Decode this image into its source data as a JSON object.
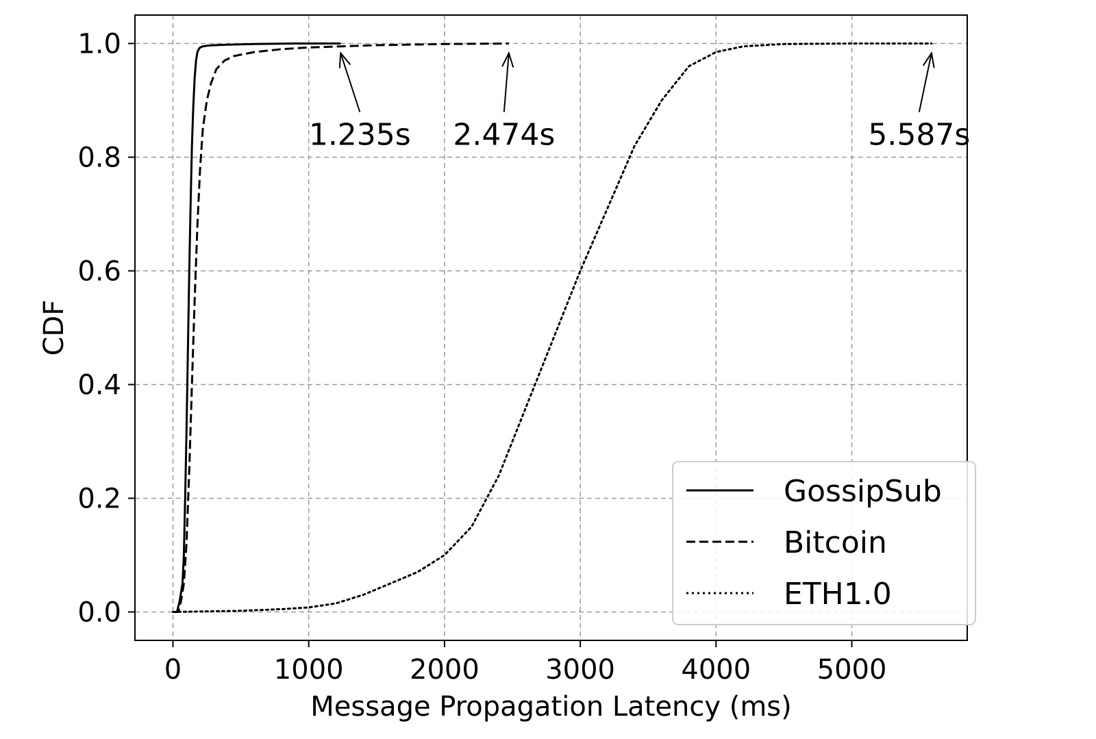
{
  "chart_data": {
    "type": "line",
    "title": "",
    "xlabel": "Message Propagation Latency (ms)",
    "ylabel": "CDF",
    "xlim": [
      -280,
      5850
    ],
    "ylim": [
      -0.05,
      1.05
    ],
    "x_ticks": [
      0,
      1000,
      2000,
      3000,
      4000,
      5000
    ],
    "x_tick_labels": [
      "0",
      "1000",
      "2000",
      "3000",
      "4000",
      "5000"
    ],
    "y_ticks": [
      0.0,
      0.2,
      0.4,
      0.6,
      0.8,
      1.0
    ],
    "y_tick_labels": [
      "0.0",
      "0.2",
      "0.4",
      "0.6",
      "0.8",
      "1.0"
    ],
    "grid": true,
    "legend_position": "bottom-right",
    "series": [
      {
        "name": "GossipSub",
        "style": "solid",
        "x": [
          0,
          30,
          50,
          70,
          80,
          90,
          100,
          110,
          120,
          130,
          140,
          150,
          160,
          170,
          180,
          190,
          200,
          220,
          250,
          300,
          400,
          600,
          900,
          1235
        ],
        "y": [
          0.0,
          0.0,
          0.02,
          0.05,
          0.1,
          0.2,
          0.32,
          0.46,
          0.6,
          0.72,
          0.82,
          0.89,
          0.94,
          0.97,
          0.985,
          0.99,
          0.993,
          0.995,
          0.996,
          0.997,
          0.998,
          0.999,
          1.0,
          1.0
        ]
      },
      {
        "name": "Bitcoin",
        "style": "dashed",
        "x": [
          0,
          40,
          60,
          80,
          100,
          120,
          140,
          160,
          180,
          200,
          220,
          250,
          280,
          320,
          380,
          450,
          600,
          800,
          1000,
          1500,
          2000,
          2474
        ],
        "y": [
          0.0,
          0.0,
          0.02,
          0.05,
          0.12,
          0.25,
          0.4,
          0.55,
          0.68,
          0.78,
          0.85,
          0.9,
          0.93,
          0.955,
          0.97,
          0.978,
          0.985,
          0.99,
          0.993,
          0.997,
          0.999,
          1.0
        ]
      },
      {
        "name": "ETH1.0",
        "style": "dotted",
        "x": [
          0,
          500,
          800,
          1000,
          1200,
          1400,
          1600,
          1800,
          2000,
          2200,
          2400,
          2600,
          2800,
          3000,
          3200,
          3400,
          3600,
          3800,
          4000,
          4200,
          4500,
          5000,
          5587
        ],
        "y": [
          0.0,
          0.002,
          0.005,
          0.008,
          0.015,
          0.03,
          0.05,
          0.07,
          0.1,
          0.15,
          0.24,
          0.36,
          0.48,
          0.6,
          0.71,
          0.82,
          0.9,
          0.96,
          0.985,
          0.995,
          0.999,
          1.0,
          1.0
        ]
      }
    ],
    "annotations": [
      {
        "text": "1.235s",
        "x": 1235,
        "y": 1.0
      },
      {
        "text": "2.474s",
        "x": 2474,
        "y": 1.0
      },
      {
        "text": "5.587s",
        "x": 5587,
        "y": 1.0
      }
    ]
  }
}
